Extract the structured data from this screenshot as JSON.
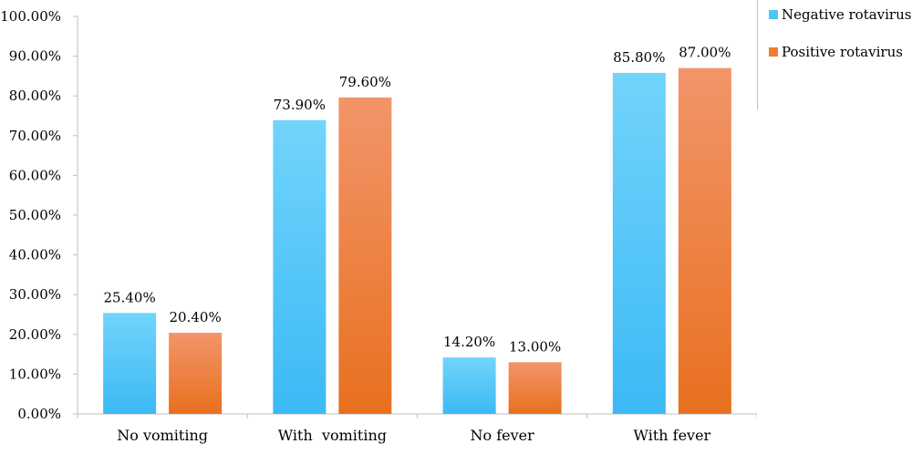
{
  "chart_data": {
    "type": "bar",
    "categories": [
      "No vomiting",
      "With  vomiting",
      "No fever",
      "With fever"
    ],
    "series": [
      {
        "name": "Negative rotavirus",
        "values": [
          25.4,
          73.9,
          14.2,
          85.8
        ],
        "labels": [
          "25.40%",
          "73.90%",
          "14.20%",
          "85.80%"
        ],
        "color": "#4dc3f7"
      },
      {
        "name": "Positive rotavirus",
        "values": [
          20.4,
          79.6,
          13.0,
          87.0
        ],
        "labels": [
          "20.40%",
          "79.60%",
          "13.00%",
          "87.00%"
        ],
        "color": "#ef7d33"
      }
    ],
    "yticks": [
      "0.00%",
      "10.00%",
      "20.00%",
      "30.00%",
      "40.00%",
      "50.00%",
      "60.00%",
      "70.00%",
      "80.00%",
      "90.00%",
      "100.00%"
    ],
    "ylim": [
      0,
      100
    ],
    "grid": false,
    "legend_position": "top-right"
  }
}
